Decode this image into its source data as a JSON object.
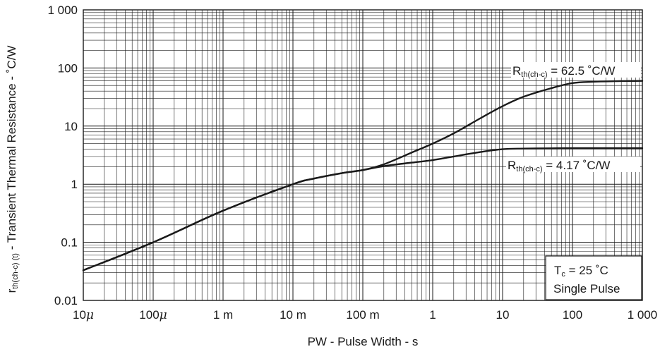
{
  "chart_data": {
    "type": "line",
    "title": "",
    "xlabel": "PW - Pulse Width - s",
    "ylabel": {
      "symbol": "r",
      "subscript": "th(ch-c) (t)",
      "text": " - Transient Thermal Resistance - ˚C/W"
    },
    "x_scale": "log",
    "y_scale": "log",
    "xlim": [
      1e-05,
      1000
    ],
    "ylim": [
      0.01,
      1000
    ],
    "grid": true,
    "x_ticks": [
      {
        "value": 1e-05,
        "label": "10μ"
      },
      {
        "value": 0.0001,
        "label": "100μ"
      },
      {
        "value": 0.001,
        "label": "1 m"
      },
      {
        "value": 0.01,
        "label": "10 m"
      },
      {
        "value": 0.1,
        "label": "100 m"
      },
      {
        "value": 1,
        "label": "1"
      },
      {
        "value": 10,
        "label": "10"
      },
      {
        "value": 100,
        "label": "100"
      },
      {
        "value": 1000,
        "label": "1 000"
      }
    ],
    "y_ticks": [
      {
        "value": 0.01,
        "label": "0.01"
      },
      {
        "value": 0.1,
        "label": "0.1"
      },
      {
        "value": 1,
        "label": "1"
      },
      {
        "value": 10,
        "label": "10"
      },
      {
        "value": 100,
        "label": "100"
      },
      {
        "value": 1000,
        "label": "1 000"
      }
    ],
    "series": [
      {
        "label_main": "R",
        "label_sub": "th(ch-c)",
        "label_rest": " = 62.5 ˚C/W",
        "x": [
          1e-05,
          0.0001,
          0.001,
          0.01,
          0.02,
          0.05,
          0.1,
          0.2,
          0.5,
          1,
          2,
          5,
          10,
          20,
          50,
          100,
          200,
          500,
          1000
        ],
        "y": [
          0.033,
          0.1,
          0.35,
          1.0,
          1.25,
          1.55,
          1.75,
          2.2,
          3.5,
          5.0,
          7.5,
          14,
          22,
          32,
          45,
          55,
          58,
          59.5,
          60
        ]
      },
      {
        "label_main": "R",
        "label_sub": "th(ch-c)",
        "label_rest": " = 4.17 ˚C/W",
        "x": [
          1e-05,
          0.0001,
          0.001,
          0.01,
          0.02,
          0.05,
          0.1,
          0.2,
          0.5,
          1,
          2,
          5,
          10,
          20,
          50,
          100,
          1000
        ],
        "y": [
          0.033,
          0.1,
          0.35,
          1.0,
          1.25,
          1.55,
          1.75,
          2.05,
          2.35,
          2.6,
          3.0,
          3.6,
          4.0,
          4.1,
          4.15,
          4.17,
          4.17
        ]
      }
    ],
    "conditions": {
      "line1_main": "T",
      "line1_sub": "c",
      "line1_rest": " = 25 ˚C",
      "line2": "Single Pulse"
    },
    "colors": {
      "line": "#1a1a1a",
      "grid": "#1a1a1a",
      "background": "#ffffff"
    }
  }
}
